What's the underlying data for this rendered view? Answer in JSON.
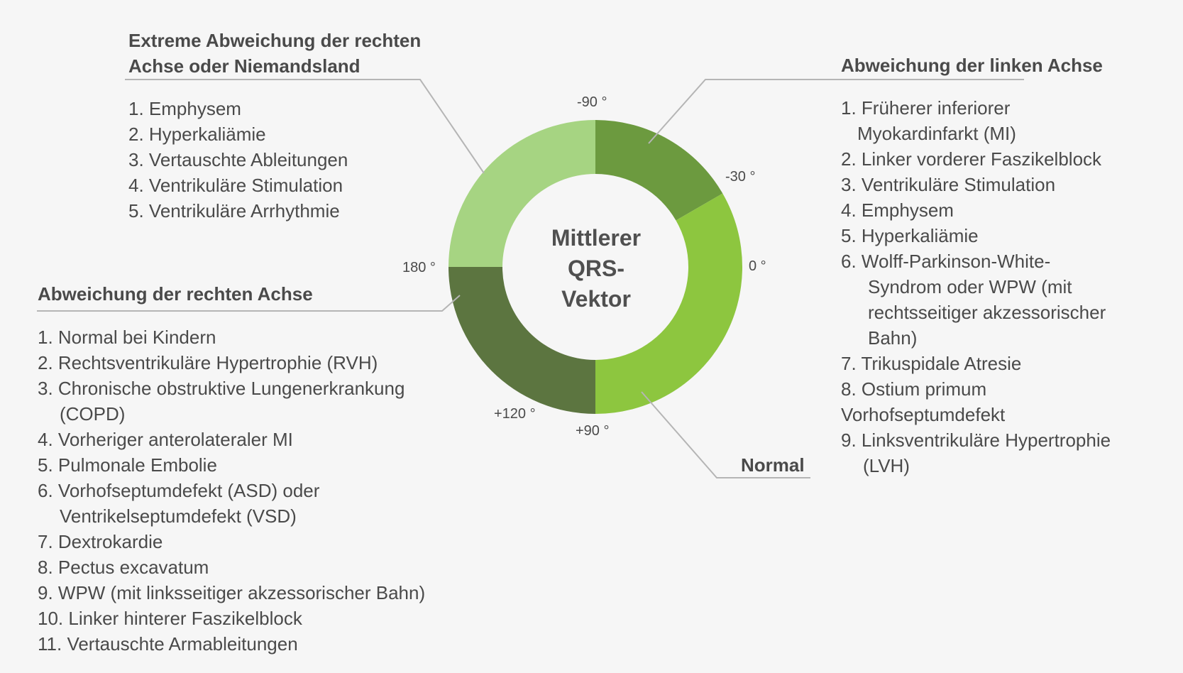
{
  "center_label": [
    "Mittlerer",
    "QRS-",
    "Vektor"
  ],
  "degree_labels": {
    "minus90": "-90 °",
    "minus30": "-30 °",
    "zero": "0 °",
    "plus90": "+90 °",
    "plus120": "+120 °",
    "deg180": "180 °"
  },
  "segments": {
    "extreme": {
      "color": "#a6d482",
      "from_deg": 180,
      "to_deg": 270
    },
    "left": {
      "color": "#6c9a3f",
      "from_deg": 270,
      "to_deg": 330
    },
    "normal": {
      "color": "#8dc63f",
      "from_deg": -30,
      "to_deg": 90
    },
    "right": {
      "color": "#5c7540",
      "from_deg": 90,
      "to_deg": 180
    }
  },
  "extreme_section": {
    "heading": [
      "Extreme Abweichung der rechten",
      "Achse oder Niemandsland"
    ],
    "items": [
      "1. Emphysem",
      "2. Hyperkaliämie",
      "3. Vertauschte Ableitungen",
      "4. Ventrikuläre Stimulation",
      "5. Ventrikuläre Arrhythmie"
    ]
  },
  "right_axis_section": {
    "heading": "Abweichung der rechten Achse",
    "items": [
      [
        "1. Normal bei Kindern"
      ],
      [
        "2. Rechtsventrikuläre Hypertrophie (RVH)"
      ],
      [
        "3. Chronische obstruktive Lungenerkrankung",
        "(COPD)"
      ],
      [
        "4. Vorheriger anterolateraler MI"
      ],
      [
        "5. Pulmonale Embolie"
      ],
      [
        "6. Vorhofseptumdefekt (ASD) oder",
        "Ventrikelseptumdefekt (VSD)"
      ],
      [
        "7. Dextrokardie"
      ],
      [
        "8. Pectus excavatum"
      ],
      [
        "9. WPW (mit linksseitiger akzessorischer Bahn)"
      ],
      [
        "10. Linker hinterer Faszikelblock"
      ],
      [
        "11. Vertauschte Armableitungen"
      ]
    ]
  },
  "left_axis_section": {
    "heading": "Abweichung der linken Achse",
    "items": [
      [
        "1. Früherer inferiorer",
        "Myokardinfarkt (MI)"
      ],
      [
        "2. Linker vorderer Faszikelblock"
      ],
      [
        "3. Ventrikuläre Stimulation"
      ],
      [
        "4. Emphysem"
      ],
      [
        "5. Hyperkaliämie"
      ],
      [
        "6. Wolff-Parkinson-White-",
        "Syndrom oder WPW (mit",
        "rechtsseitiger akzessorischer",
        "Bahn)"
      ],
      [
        "7. Trikuspidale Atresie"
      ],
      [
        "8. Ostium primum",
        "Vorhofseptumdefekt"
      ],
      [
        "9. Linksventrikuläre Hypertrophie",
        "(LVH)"
      ]
    ]
  },
  "normal_section": {
    "heading": "Normal"
  }
}
